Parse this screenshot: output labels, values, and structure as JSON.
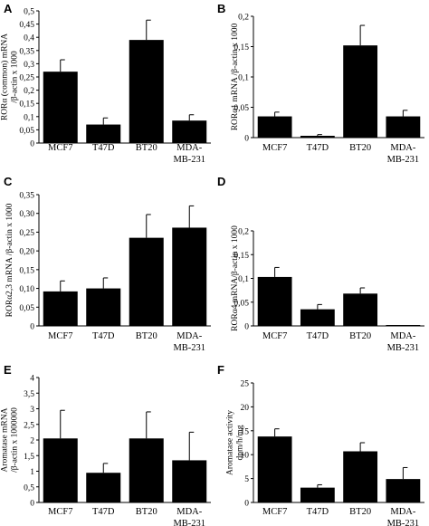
{
  "chart_data": [
    {
      "panel": "A",
      "type": "bar",
      "categories": [
        [
          "MCF7"
        ],
        [
          "T47D"
        ],
        [
          "BT20"
        ],
        [
          "MDA-",
          "MB-231"
        ]
      ],
      "values": [
        0.27,
        0.07,
        0.39,
        0.085
      ],
      "errors": [
        0.045,
        0.025,
        0.075,
        0.022
      ],
      "ylabel": [
        "RORα (common) mRNA",
        "/β-actin x 1000"
      ],
      "ylim": [
        0,
        0.5
      ],
      "yticks": [
        "0",
        "0,05",
        "0,1",
        "0,15",
        "0,2",
        "0,25",
        "0,3",
        "0,35",
        "0,4",
        "0,45",
        "0,5"
      ]
    },
    {
      "panel": "B",
      "type": "bar",
      "categories": [
        [
          "MCF7"
        ],
        [
          "T47D"
        ],
        [
          "BT20"
        ],
        [
          "MDA-",
          "MB-231"
        ]
      ],
      "values": [
        0.035,
        0.003,
        0.152,
        0.035
      ],
      "errors": [
        0.007,
        0.002,
        0.033,
        0.01
      ],
      "ylabel": [
        "RORα1 mRNA /β-actin x 1000"
      ],
      "ylim": [
        0,
        0.2
      ],
      "yticks": [
        "0",
        "0,05",
        "0,1",
        "0,15",
        "0,2"
      ]
    },
    {
      "panel": "C",
      "type": "bar",
      "categories": [
        [
          "MCF7"
        ],
        [
          "T47D"
        ],
        [
          "BT20"
        ],
        [
          "MDA-",
          "MB-231"
        ]
      ],
      "values": [
        0.092,
        0.1,
        0.235,
        0.262
      ],
      "errors": [
        0.028,
        0.028,
        0.062,
        0.058
      ],
      "ylabel": [
        "RORα2,3 mRNA /β-actin x 1000"
      ],
      "ylim": [
        0,
        0.35
      ],
      "yticks": [
        "0",
        "0,05",
        "0,10",
        "0,15",
        "0,20",
        "0,25",
        "0,30",
        "0,35"
      ]
    },
    {
      "panel": "D",
      "type": "bar",
      "categories": [
        [
          "MCF7"
        ],
        [
          "T47D"
        ],
        [
          "BT20"
        ],
        [
          "MDA-",
          "MB-231"
        ]
      ],
      "values": [
        0.103,
        0.035,
        0.068,
        0.001
      ],
      "errors": [
        0.02,
        0.01,
        0.012,
        0.0
      ],
      "ylabel": [
        "RORα4 mRNA/β-actin x 1000"
      ],
      "ylim": [
        0,
        0.2
      ],
      "yticks": [
        "0",
        "0,05",
        "0,1",
        "0,15",
        "0,2"
      ]
    },
    {
      "panel": "E",
      "type": "bar",
      "categories": [
        [
          "MCF7"
        ],
        [
          "T47D"
        ],
        [
          "BT20"
        ],
        [
          "MDA-",
          "MB-231"
        ]
      ],
      "values": [
        2.05,
        0.95,
        2.05,
        1.35
      ],
      "errors": [
        0.9,
        0.3,
        0.85,
        0.9
      ],
      "ylabel": [
        "Aromatase mRNA",
        "/β-actin x 1000000"
      ],
      "ylim": [
        0,
        4
      ],
      "yticks": [
        "0",
        "0,5",
        "1",
        "1,5",
        "2",
        "2,5",
        "3",
        "3,5",
        "4"
      ]
    },
    {
      "panel": "F",
      "type": "bar",
      "categories": [
        [
          "MCF7"
        ],
        [
          "T47D"
        ],
        [
          "BT20"
        ],
        [
          "MDA-",
          "MB-231"
        ]
      ],
      "values": [
        13.8,
        3.1,
        10.7,
        4.9
      ],
      "errors": [
        1.6,
        0.6,
        1.8,
        2.4
      ],
      "ylabel": [
        "Aromatase activity",
        "dpm/h/mg"
      ],
      "ylim": [
        0,
        25
      ],
      "yticks": [
        "0",
        "5",
        "10",
        "15",
        "20",
        "25"
      ]
    }
  ],
  "bar_color": "#000000"
}
